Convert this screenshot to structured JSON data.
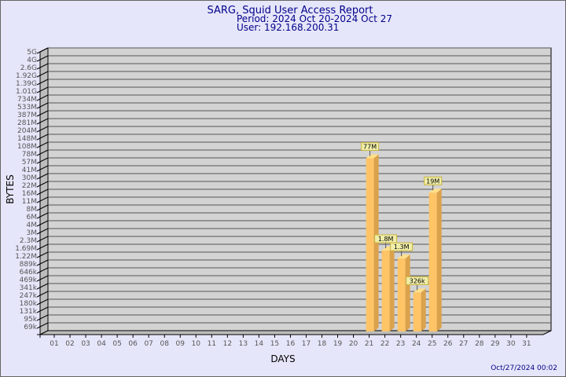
{
  "chart_data": {
    "type": "bar",
    "title": "SARG, Squid User Access Report",
    "subtitle": [
      "Period: 2024 Oct 20-2024 Oct 27",
      "User: 192.168.200.31"
    ],
    "xlabel": "DAYS",
    "ylabel": "BYTES",
    "y_scale": "log",
    "grid": true,
    "y_tick_labels": [
      "5G",
      "4G",
      "2.6G",
      "1.92G",
      "1.39G",
      "1.01G",
      "734M",
      "533M",
      "387M",
      "281M",
      "204M",
      "148M",
      "108M",
      "78M",
      "57M",
      "41M",
      "30M",
      "22M",
      "16M",
      "11M",
      "8M",
      "6M",
      "4M",
      "3M",
      "2.3M",
      "1.69M",
      "1.22M",
      "889k",
      "646k",
      "469k",
      "341k",
      "247k",
      "180k",
      "131k",
      "95k",
      "69k"
    ],
    "categories": [
      "01",
      "02",
      "03",
      "04",
      "05",
      "06",
      "07",
      "08",
      "09",
      "10",
      "11",
      "12",
      "13",
      "14",
      "15",
      "16",
      "17",
      "18",
      "19",
      "20",
      "21",
      "22",
      "23",
      "24",
      "25",
      "26",
      "27",
      "28",
      "29",
      "30",
      "31"
    ],
    "bars": [
      {
        "day": "21",
        "value": 77000000,
        "label": "77M"
      },
      {
        "day": "22",
        "value": 1800000,
        "label": "1.8M"
      },
      {
        "day": "23",
        "value": 1300000,
        "label": "1.3M"
      },
      {
        "day": "24",
        "value": 326000,
        "label": "326k"
      },
      {
        "day": "25",
        "value": 19000000,
        "label": "19M"
      }
    ],
    "ylim": [
      69000,
      5000000000
    ],
    "colors": {
      "bar_front": "#ffc466",
      "bar_side": "#dba24c",
      "bar_top": "#ffe08a",
      "wall": "#d3d3d3",
      "background": "#e6e6fa",
      "text": "#00008b"
    }
  },
  "footer": {
    "timestamp": "Oct/27/2024 00:02"
  }
}
